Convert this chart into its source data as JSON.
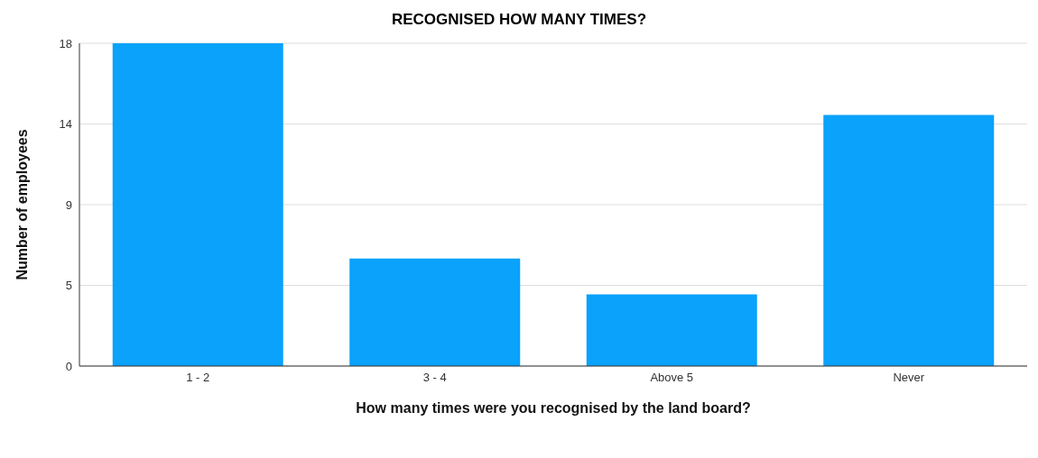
{
  "chart_data": {
    "type": "bar",
    "title": "RECOGNISED HOW MANY TIMES?",
    "xlabel": "How many times were you recognised by the land board?",
    "ylabel": "Number of employees",
    "categories": [
      "1 - 2",
      "3 - 4",
      "Above 5",
      "Never"
    ],
    "values": [
      18,
      6,
      4,
      14
    ],
    "color": "#0aa2fb",
    "ylim": [
      0,
      18
    ],
    "yticks": [
      0,
      {
        "value": 4.5,
        "label": "5"
      },
      9,
      {
        "value": 13.5,
        "label": "14"
      },
      18
    ],
    "grid": "y"
  }
}
